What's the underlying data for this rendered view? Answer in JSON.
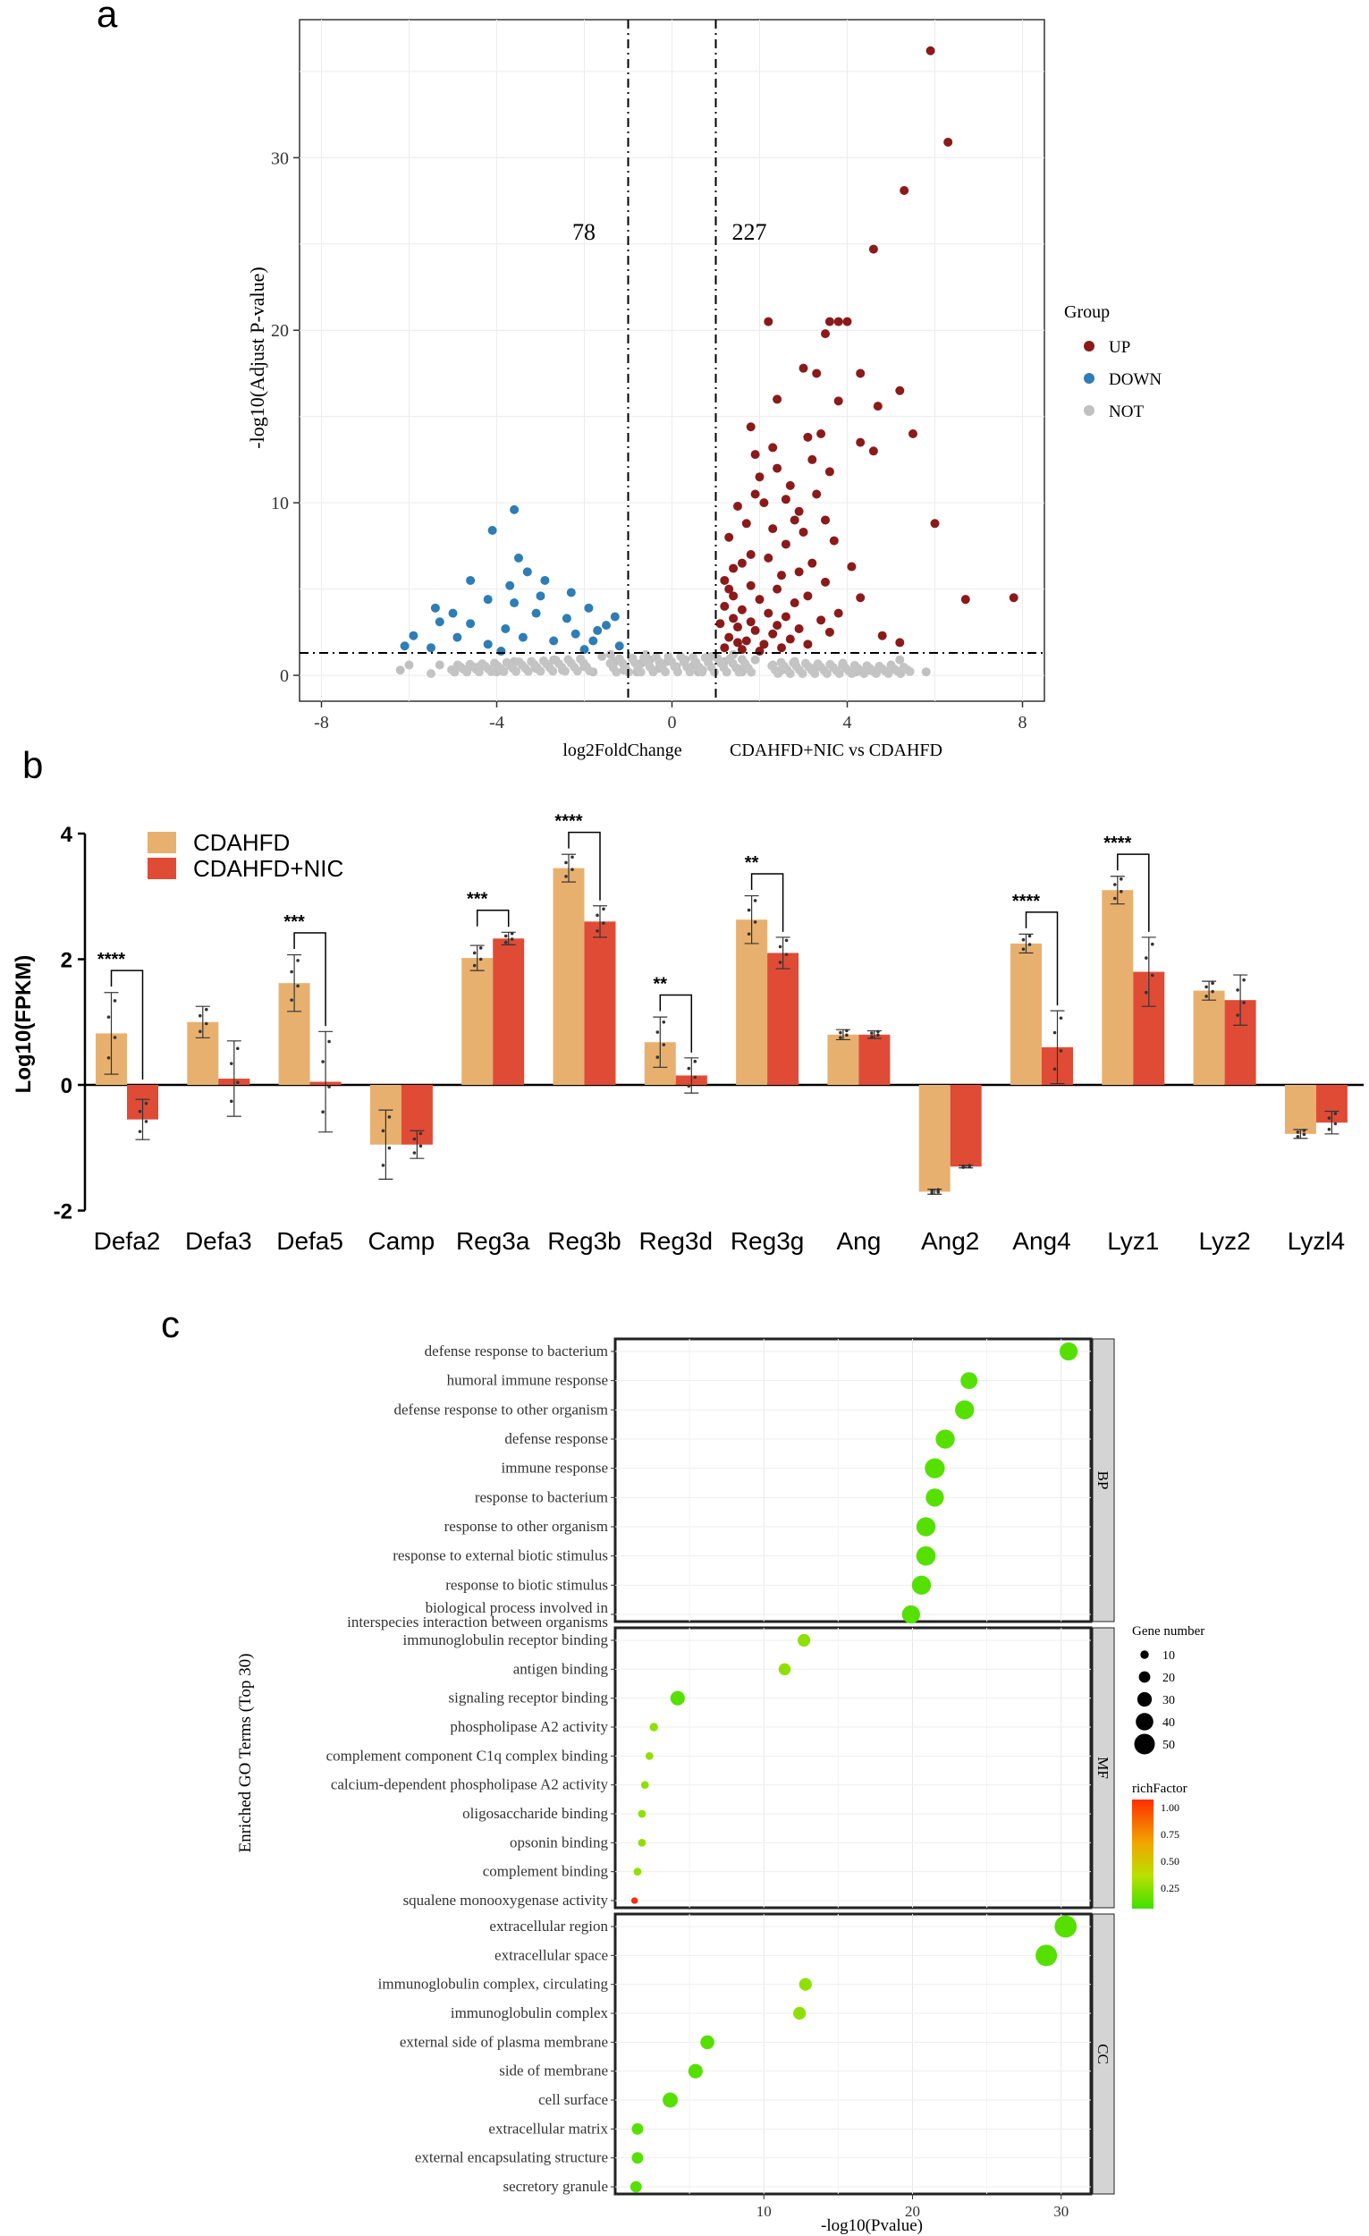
{
  "panel_labels": {
    "a": "a",
    "b": "b",
    "c": "c"
  },
  "chart_data": [
    {
      "type": "scatter",
      "id": "volcano",
      "xlabel": "log2FoldChange",
      "ylabel": "-log10(Adjust P-value)",
      "subtitle": "CDAHFD+NIC vs CDAHFD",
      "xlim": [
        -8.5,
        8.5
      ],
      "ylim": [
        -1.5,
        38
      ],
      "x_ticks": [
        -8,
        -4,
        0,
        4,
        8
      ],
      "y_ticks": [
        0,
        10,
        20,
        30
      ],
      "x_tick_labels": [
        "-8",
        "-4",
        "0",
        "4",
        "8"
      ],
      "y_tick_labels": [
        "0",
        "10",
        "20",
        "30"
      ],
      "count_down": "78",
      "count_up": "227",
      "vlines": [
        -1,
        1
      ],
      "hline": 1.3,
      "legend": {
        "title": "Group",
        "entries": [
          {
            "name": "UP",
            "color": "#8b1a1a"
          },
          {
            "name": "DOWN",
            "color": "#2e7db5"
          },
          {
            "name": "NOT",
            "color": "#c0c0c0"
          }
        ]
      },
      "up_points": [
        [
          5.9,
          36.2
        ],
        [
          6.3,
          30.9
        ],
        [
          5.3,
          28.1
        ],
        [
          4.6,
          24.7
        ],
        [
          2.2,
          20.5
        ],
        [
          3.6,
          20.5
        ],
        [
          3.8,
          20.5
        ],
        [
          4.0,
          20.5
        ],
        [
          3.5,
          19.8
        ],
        [
          3.0,
          17.8
        ],
        [
          4.3,
          17.5
        ],
        [
          5.2,
          16.5
        ],
        [
          3.8,
          15.9
        ],
        [
          4.7,
          15.6
        ],
        [
          1.8,
          14.4
        ],
        [
          3.4,
          14.0
        ],
        [
          3.1,
          13.8
        ],
        [
          2.3,
          13.2
        ],
        [
          4.3,
          13.5
        ],
        [
          4.6,
          13.0
        ],
        [
          5.5,
          14.0
        ],
        [
          3.2,
          12.5
        ],
        [
          2.4,
          12.0
        ],
        [
          2.0,
          11.5
        ],
        [
          2.7,
          11.0
        ],
        [
          1.9,
          10.5
        ],
        [
          2.1,
          10.0
        ],
        [
          2.6,
          10.2
        ],
        [
          3.3,
          10.5
        ],
        [
          1.5,
          9.8
        ],
        [
          2.9,
          9.5
        ],
        [
          3.5,
          9.0
        ],
        [
          1.7,
          8.8
        ],
        [
          2.3,
          8.5
        ],
        [
          3.0,
          8.3
        ],
        [
          1.3,
          8.0
        ],
        [
          2.6,
          7.6
        ],
        [
          3.7,
          7.8
        ],
        [
          1.8,
          7.0
        ],
        [
          2.2,
          6.8
        ],
        [
          3.2,
          6.5
        ],
        [
          1.4,
          6.2
        ],
        [
          2.9,
          6.0
        ],
        [
          4.1,
          6.3
        ],
        [
          6.0,
          8.8
        ],
        [
          1.2,
          5.5
        ],
        [
          1.8,
          5.2
        ],
        [
          2.4,
          5.0
        ],
        [
          3.5,
          5.4
        ],
        [
          1.4,
          4.6
        ],
        [
          2.0,
          4.4
        ],
        [
          2.8,
          4.2
        ],
        [
          3.1,
          4.6
        ],
        [
          1.2,
          4.0
        ],
        [
          1.6,
          3.8
        ],
        [
          2.2,
          3.6
        ],
        [
          2.6,
          3.4
        ],
        [
          3.4,
          3.2
        ],
        [
          4.3,
          4.5
        ],
        [
          6.7,
          4.4
        ],
        [
          7.8,
          4.5
        ],
        [
          1.1,
          3.0
        ],
        [
          1.5,
          2.8
        ],
        [
          1.9,
          2.6
        ],
        [
          2.3,
          2.4
        ],
        [
          2.9,
          2.7
        ],
        [
          3.6,
          2.5
        ],
        [
          1.3,
          2.2
        ],
        [
          1.7,
          2.0
        ],
        [
          2.1,
          1.8
        ],
        [
          2.5,
          1.6
        ],
        [
          3.1,
          1.8
        ],
        [
          4.8,
          2.3
        ],
        [
          5.2,
          1.9
        ],
        [
          1.2,
          1.6
        ],
        [
          1.6,
          1.5
        ],
        [
          2.0,
          1.4
        ],
        [
          1.4,
          3.3
        ],
        [
          1.8,
          3.1
        ],
        [
          2.4,
          2.9
        ],
        [
          3.8,
          3.6
        ],
        [
          1.3,
          5.0
        ],
        [
          2.5,
          5.8
        ],
        [
          1.6,
          6.5
        ],
        [
          2.8,
          9.0
        ],
        [
          3.6,
          11.8
        ],
        [
          1.9,
          12.8
        ],
        [
          2.4,
          16.0
        ],
        [
          3.3,
          17.5
        ],
        [
          1.5,
          1.9
        ],
        [
          2.7,
          2.1
        ]
      ],
      "down_points": [
        [
          -3.6,
          9.6
        ],
        [
          -4.1,
          8.4
        ],
        [
          -3.5,
          6.8
        ],
        [
          -3.3,
          6.0
        ],
        [
          -4.6,
          5.5
        ],
        [
          -3.7,
          5.2
        ],
        [
          -2.9,
          5.5
        ],
        [
          -3.0,
          4.6
        ],
        [
          -2.3,
          4.8
        ],
        [
          -4.2,
          4.4
        ],
        [
          -3.6,
          4.2
        ],
        [
          -5.4,
          3.9
        ],
        [
          -5.0,
          3.6
        ],
        [
          -3.1,
          3.6
        ],
        [
          -2.4,
          3.3
        ],
        [
          -1.9,
          3.9
        ],
        [
          -1.3,
          3.4
        ],
        [
          -1.7,
          2.6
        ],
        [
          -5.3,
          3.1
        ],
        [
          -4.6,
          3.0
        ],
        [
          -3.8,
          2.7
        ],
        [
          -2.2,
          2.4
        ],
        [
          -1.5,
          2.9
        ],
        [
          -5.9,
          2.3
        ],
        [
          -4.9,
          2.2
        ],
        [
          -3.4,
          2.2
        ],
        [
          -2.7,
          2.0
        ],
        [
          -1.8,
          2.0
        ],
        [
          -6.1,
          1.7
        ],
        [
          -5.5,
          1.6
        ],
        [
          -4.2,
          1.8
        ],
        [
          -2.0,
          1.5
        ],
        [
          -1.2,
          1.7
        ],
        [
          -3.9,
          1.4
        ]
      ],
      "not_points": [
        [
          -6.2,
          0.3
        ],
        [
          -5.3,
          0.6
        ],
        [
          -4.4,
          0.5
        ],
        [
          -3.6,
          0.8
        ],
        [
          -3.1,
          0.4
        ],
        [
          -2.7,
          0.9
        ],
        [
          -2.3,
          0.7
        ],
        [
          -2.0,
          0.5
        ],
        [
          -1.6,
          1.1
        ],
        [
          -1.3,
          0.8
        ],
        [
          -1.1,
          0.3
        ],
        [
          -0.9,
          1.0
        ],
        [
          -0.7,
          0.7
        ],
        [
          -0.5,
          0.9
        ],
        [
          -0.3,
          0.4
        ],
        [
          -0.1,
          0.8
        ],
        [
          0.1,
          0.5
        ],
        [
          0.3,
          0.9
        ],
        [
          0.5,
          0.6
        ],
        [
          0.7,
          0.3
        ],
        [
          0.9,
          1.1
        ],
        [
          1.2,
          0.8
        ],
        [
          1.5,
          0.4
        ],
        [
          1.9,
          0.9
        ],
        [
          2.3,
          0.6
        ],
        [
          2.8,
          0.8
        ],
        [
          3.3,
          0.5
        ],
        [
          3.9,
          0.7
        ],
        [
          4.5,
          0.3
        ],
        [
          5.0,
          0.6
        ],
        [
          5.8,
          0.2
        ],
        [
          -1.8,
          0.2
        ],
        [
          -2.5,
          0.3
        ],
        [
          1.6,
          0.2
        ],
        [
          2.5,
          0.3
        ],
        [
          -0.8,
          0.2
        ],
        [
          0.6,
          0.2
        ],
        [
          -4.0,
          0.2
        ],
        [
          4.2,
          0.2
        ],
        [
          -1.4,
          1.2
        ],
        [
          1.4,
          1.2
        ],
        [
          -0.6,
          1.2
        ],
        [
          0.8,
          1.0
        ],
        [
          -6.0,
          0.6
        ],
        [
          5.2,
          0.9
        ]
      ]
    },
    {
      "type": "bar",
      "id": "fpkm",
      "ylabel": "Log10(FPKM)",
      "ylim": [
        -2,
        4
      ],
      "y_ticks": [
        -2,
        0,
        2,
        4
      ],
      "y_tick_labels": [
        "-2",
        "0",
        "2",
        "4"
      ],
      "categories": [
        "Defa2",
        "Defa3",
        "Defa5",
        "Camp",
        "Reg3a",
        "Reg3b",
        "Reg3d",
        "Reg3g",
        "Ang",
        "Ang2",
        "Ang4",
        "Lyz1",
        "Lyz2",
        "Lyzl4"
      ],
      "series": [
        {
          "name": "CDAHFD",
          "color": "#e8b06e",
          "values": [
            0.82,
            1.0,
            1.62,
            -0.95,
            2.02,
            3.45,
            0.68,
            2.63,
            0.8,
            -1.7,
            2.25,
            3.1,
            1.5,
            -0.78
          ],
          "errors": [
            0.65,
            0.25,
            0.45,
            0.55,
            0.2,
            0.22,
            0.4,
            0.38,
            0.08,
            0.04,
            0.15,
            0.22,
            0.15,
            0.07
          ]
        },
        {
          "name": "CDAHFD+NIC",
          "color": "#e04b36",
          "values": [
            -0.55,
            0.1,
            0.05,
            -0.95,
            2.33,
            2.6,
            0.15,
            2.1,
            0.8,
            -1.3,
            0.6,
            1.8,
            1.35,
            -0.6
          ],
          "errors": [
            0.32,
            0.6,
            0.8,
            0.22,
            0.1,
            0.25,
            0.28,
            0.25,
            0.06,
            0.02,
            0.58,
            0.55,
            0.4,
            0.18
          ]
        }
      ],
      "significance": [
        {
          "index": 0,
          "label": "****"
        },
        {
          "index": 2,
          "label": "***"
        },
        {
          "index": 4,
          "label": "***"
        },
        {
          "index": 5,
          "label": "****"
        },
        {
          "index": 6,
          "label": "**"
        },
        {
          "index": 7,
          "label": "**"
        },
        {
          "index": 10,
          "label": "****"
        },
        {
          "index": 11,
          "label": "****"
        }
      ]
    },
    {
      "type": "scatter",
      "id": "go-dotplot",
      "xlabel": "-log10(Pvalue)",
      "ylabel": "Enriched GO Terms (Top 30)",
      "xlim": [
        0,
        32
      ],
      "x_ticks": [
        10,
        20,
        30
      ],
      "x_tick_labels": [
        "10",
        "20",
        "30"
      ],
      "size_legend": {
        "title": "Gene number",
        "values": [
          10,
          20,
          30,
          40,
          50
        ]
      },
      "color_legend": {
        "title": "richFactor",
        "labels": [
          "1.00",
          "0.75",
          "0.50",
          "0.25"
        ]
      },
      "facets": [
        {
          "name": "BP",
          "terms": [
            {
              "term": "defense response to bacterium",
              "x": 30.5,
              "genes": 42,
              "rich": 0.2
            },
            {
              "term": "humoral immune response",
              "x": 23.8,
              "genes": 38,
              "rich": 0.2
            },
            {
              "term": "defense response to other organism",
              "x": 23.5,
              "genes": 45,
              "rich": 0.2
            },
            {
              "term": "defense response",
              "x": 22.2,
              "genes": 45,
              "rich": 0.2
            },
            {
              "term": "immune response",
              "x": 21.5,
              "genes": 48,
              "rich": 0.2
            },
            {
              "term": "response to bacterium",
              "x": 21.5,
              "genes": 42,
              "rich": 0.2
            },
            {
              "term": "response to other organism",
              "x": 20.9,
              "genes": 45,
              "rich": 0.2
            },
            {
              "term": "response to external biotic stimulus",
              "x": 20.9,
              "genes": 46,
              "rich": 0.2
            },
            {
              "term": "response to biotic stimulus",
              "x": 20.6,
              "genes": 45,
              "rich": 0.2
            },
            {
              "term": "biological process involved in interspecies interaction between organisms",
              "label_lines": [
                "biological process involved in",
                "interspecies interaction between organisms"
              ],
              "x": 19.9,
              "genes": 42,
              "rich": 0.2
            }
          ]
        },
        {
          "name": "MF",
          "terms": [
            {
              "term": "immunoglobulin receptor binding",
              "x": 12.7,
              "genes": 24,
              "rich": 0.3
            },
            {
              "term": "antigen binding",
              "x": 11.4,
              "genes": 22,
              "rich": 0.3
            },
            {
              "term": "signaling receptor binding",
              "x": 4.2,
              "genes": 30,
              "rich": 0.2
            },
            {
              "term": "phospholipase A2 activity",
              "x": 2.6,
              "genes": 10,
              "rich": 0.3
            },
            {
              "term": "complement component C1q complex binding",
              "x": 2.3,
              "genes": 8,
              "rich": 0.35
            },
            {
              "term": "calcium-dependent phospholipase A2 activity",
              "x": 2.0,
              "genes": 8,
              "rich": 0.3
            },
            {
              "term": "oligosaccharide binding",
              "x": 1.8,
              "genes": 8,
              "rich": 0.3
            },
            {
              "term": "opsonin binding",
              "x": 1.8,
              "genes": 8,
              "rich": 0.3
            },
            {
              "term": "complement binding",
              "x": 1.5,
              "genes": 8,
              "rich": 0.3
            },
            {
              "term": "squalene monooxygenase activity",
              "x": 1.3,
              "genes": 4,
              "rich": 1.0
            }
          ]
        },
        {
          "name": "CC",
          "terms": [
            {
              "term": "extracellular region",
              "x": 30.3,
              "genes": 55,
              "rich": 0.2
            },
            {
              "term": "extracellular space",
              "x": 29.0,
              "genes": 53,
              "rich": 0.2
            },
            {
              "term": "immunoglobulin complex, circulating",
              "x": 12.8,
              "genes": 24,
              "rich": 0.3
            },
            {
              "term": "immunoglobulin complex",
              "x": 12.4,
              "genes": 24,
              "rich": 0.3
            },
            {
              "term": "external side of plasma membrane",
              "x": 6.2,
              "genes": 28,
              "rich": 0.2
            },
            {
              "term": "side of membrane",
              "x": 5.4,
              "genes": 30,
              "rich": 0.2
            },
            {
              "term": "cell surface",
              "x": 3.7,
              "genes": 32,
              "rich": 0.2
            },
            {
              "term": "extracellular matrix",
              "x": 1.5,
              "genes": 20,
              "rich": 0.2
            },
            {
              "term": "external encapsulating structure",
              "x": 1.5,
              "genes": 20,
              "rich": 0.2
            },
            {
              "term": "secretory granule",
              "x": 1.4,
              "genes": 20,
              "rich": 0.2
            }
          ]
        }
      ]
    }
  ]
}
